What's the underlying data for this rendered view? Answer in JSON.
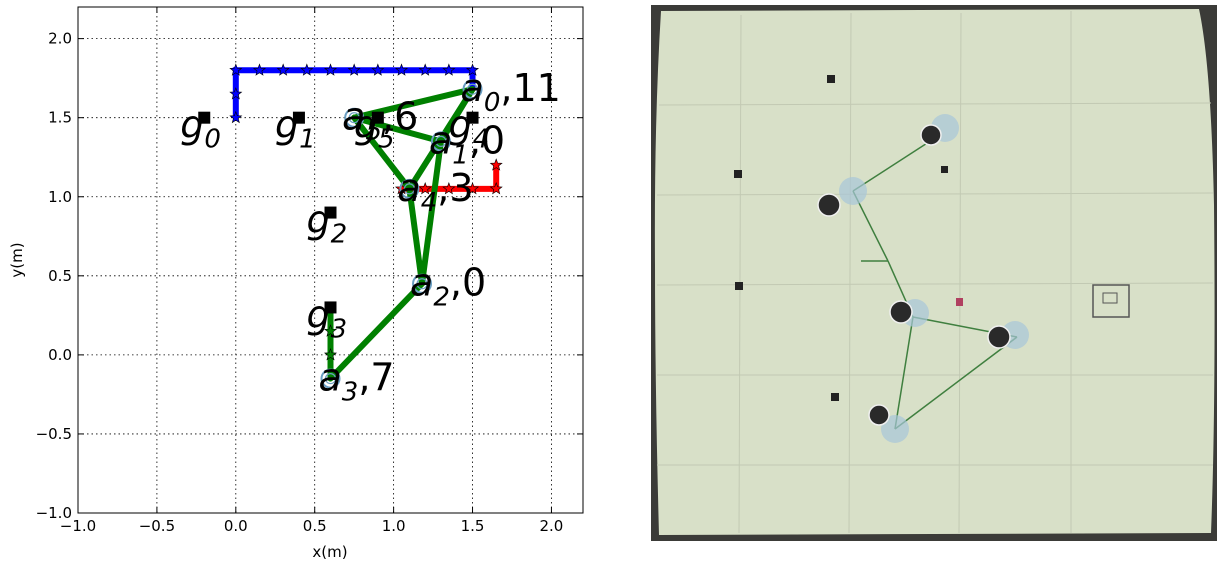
{
  "chart_data": {
    "type": "line",
    "xlabel": "x(m)",
    "ylabel": "y(m)",
    "xlim": [
      -1.0,
      2.2
    ],
    "ylim": [
      -1.0,
      2.2
    ],
    "xticks": [
      -1.0,
      -0.5,
      0.0,
      0.5,
      1.0,
      1.5,
      2.0
    ],
    "yticks": [
      -1.0,
      -0.5,
      0.0,
      0.5,
      1.0,
      1.5,
      2.0
    ],
    "xtick_labels": [
      "−1.0",
      "−0.5",
      "0.0",
      "0.5",
      "1.0",
      "1.5",
      "2.0"
    ],
    "ytick_labels": [
      "−1.0",
      "−0.5",
      "0.0",
      "0.5",
      "1.0",
      "1.5",
      "2.0"
    ],
    "grid": true,
    "colors": {
      "blue": "#0000ff",
      "red": "#ff0000",
      "green": "#008000",
      "agent": "#6a9ec2",
      "goal": "#000000"
    },
    "goals": [
      {
        "sym": "g",
        "sub": "0",
        "x": -0.2,
        "y": 1.5
      },
      {
        "sym": "g",
        "sub": "1",
        "x": 0.4,
        "y": 1.5
      },
      {
        "sym": "g",
        "sub": "2",
        "x": 0.6,
        "y": 0.9
      },
      {
        "sym": "g",
        "sub": "3",
        "x": 0.6,
        "y": 0.3
      },
      {
        "sym": "g",
        "sub": "4",
        "x": 1.5,
        "y": 1.5
      },
      {
        "sym": "g",
        "sub": "5",
        "x": 0.9,
        "y": 1.5
      }
    ],
    "agents": [
      {
        "sym": "a",
        "sub": "0",
        "num": "11",
        "x": 1.5,
        "y": 1.68
      },
      {
        "sym": "a",
        "sub": "1",
        "num": "0",
        "x": 1.3,
        "y": 1.35
      },
      {
        "sym": "a",
        "sub": "2",
        "num": "0",
        "x": 1.18,
        "y": 0.45
      },
      {
        "sym": "a",
        "sub": "3",
        "num": "7",
        "x": 0.6,
        "y": -0.15
      },
      {
        "sym": "a",
        "sub": "4",
        "num": "3",
        "x": 1.1,
        "y": 1.05
      },
      {
        "sym": "a",
        "sub": "5",
        "num": "6",
        "x": 0.75,
        "y": 1.5
      }
    ],
    "edges": [
      [
        0,
        5
      ],
      [
        0,
        1
      ],
      [
        0,
        4
      ],
      [
        5,
        1
      ],
      [
        5,
        4
      ],
      [
        4,
        2
      ],
      [
        1,
        2
      ],
      [
        2,
        3
      ]
    ],
    "paths": [
      {
        "color": "blue",
        "points": [
          [
            0.0,
            1.5
          ],
          [
            0.0,
            1.8
          ],
          [
            1.5,
            1.8
          ],
          [
            1.5,
            1.68
          ]
        ],
        "markers": [
          [
            0.0,
            1.5
          ],
          [
            0.0,
            1.65
          ],
          [
            0.0,
            1.8
          ],
          [
            0.15,
            1.8
          ],
          [
            0.3,
            1.8
          ],
          [
            0.45,
            1.8
          ],
          [
            0.6,
            1.8
          ],
          [
            0.75,
            1.8
          ],
          [
            0.9,
            1.8
          ],
          [
            1.05,
            1.8
          ],
          [
            1.2,
            1.8
          ],
          [
            1.35,
            1.8
          ],
          [
            1.5,
            1.8
          ]
        ]
      },
      {
        "color": "red",
        "points": [
          [
            1.05,
            1.05
          ],
          [
            1.65,
            1.05
          ],
          [
            1.65,
            1.2
          ]
        ],
        "markers": [
          [
            1.05,
            1.05
          ],
          [
            1.2,
            1.05
          ],
          [
            1.35,
            1.05
          ],
          [
            1.5,
            1.05
          ],
          [
            1.65,
            1.05
          ],
          [
            1.65,
            1.2
          ]
        ]
      },
      {
        "color": "green",
        "points": [
          [
            0.6,
            -0.15
          ],
          [
            0.6,
            0.3
          ]
        ],
        "markers": [
          [
            0.6,
            0.0
          ],
          [
            0.6,
            0.15
          ]
        ]
      }
    ]
  }
}
